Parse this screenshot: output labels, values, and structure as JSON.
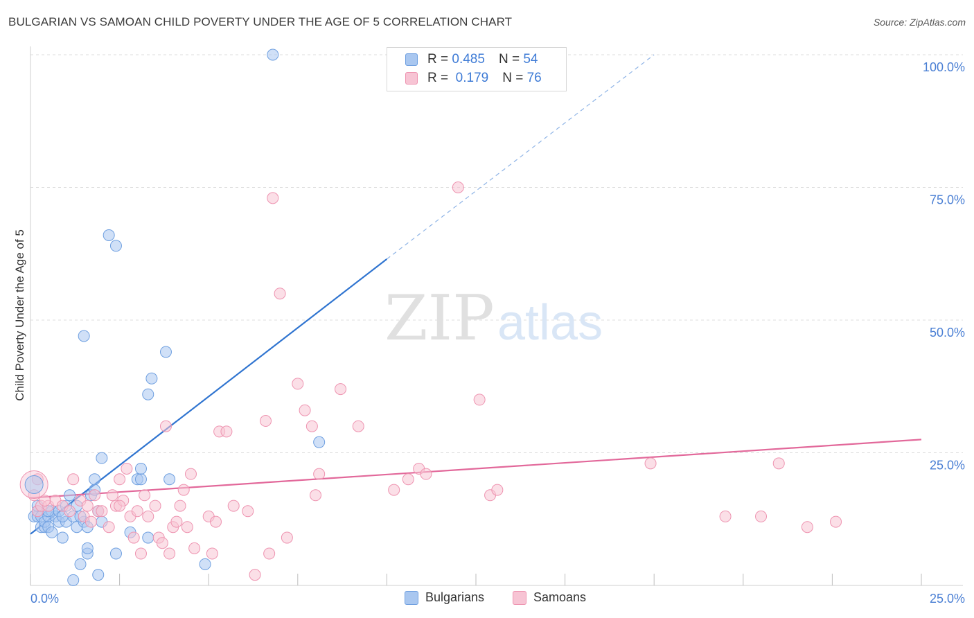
{
  "title": "BULGARIAN VS SAMOAN CHILD POVERTY UNDER THE AGE OF 5 CORRELATION CHART",
  "source": "Source: ZipAtlas.com",
  "watermark": {
    "zip": "ZIP",
    "atlas": "atlas"
  },
  "legend": {
    "rows": [
      {
        "r_label": "R =",
        "r_value": "0.485",
        "n_label": "N =",
        "n_value": "54",
        "color": "#a9c7f0",
        "edge": "#6e9fe0"
      },
      {
        "r_label": "R =",
        "r_value": "0.179",
        "n_label": "N =",
        "n_value": "76",
        "color": "#f7c4d4",
        "edge": "#ee93b0"
      }
    ]
  },
  "bottom_legend": [
    {
      "label": "Bulgarians",
      "color": "#a9c7f0",
      "edge": "#6e9fe0"
    },
    {
      "label": "Samoans",
      "color": "#f7c4d4",
      "edge": "#ee93b0"
    }
  ],
  "chart_data": {
    "type": "scatter",
    "title": "BULGARIAN VS SAMOAN CHILD POVERTY UNDER THE AGE OF 5 CORRELATION CHART",
    "xlabel": "",
    "ylabel": "Child Poverty Under the Age of 5",
    "xlim": [
      0,
      25
    ],
    "ylim": [
      0,
      100
    ],
    "x_tick_labels": [
      "0.0%",
      "25.0%"
    ],
    "y_tick_labels": [
      "100.0%",
      "75.0%",
      "50.0%",
      "25.0%"
    ],
    "y_ticks": [
      100,
      75,
      50,
      25
    ],
    "grid": true,
    "series": [
      {
        "name": "Bulgarians",
        "color": "#6e9fe0",
        "fill": "#a9c7f0",
        "trend": {
          "x": [
            0,
            10
          ],
          "y": [
            9.7,
            61.5
          ],
          "dash_to": [
            17.5,
            100
          ]
        },
        "points": [
          [
            0.1,
            13
          ],
          [
            0.2,
            13
          ],
          [
            0.2,
            14
          ],
          [
            0.3,
            11
          ],
          [
            0.3,
            13
          ],
          [
            0.4,
            11
          ],
          [
            0.4,
            12
          ],
          [
            0.5,
            13
          ],
          [
            0.5,
            11
          ],
          [
            0.6,
            14
          ],
          [
            0.6,
            10
          ],
          [
            0.7,
            13
          ],
          [
            0.8,
            12
          ],
          [
            0.8,
            14
          ],
          [
            0.9,
            9
          ],
          [
            1.0,
            15
          ],
          [
            1.0,
            12
          ],
          [
            1.1,
            17
          ],
          [
            1.2,
            13
          ],
          [
            1.3,
            11
          ],
          [
            1.3,
            15
          ],
          [
            1.4,
            4
          ],
          [
            1.5,
            12
          ],
          [
            1.5,
            47
          ],
          [
            1.6,
            6
          ],
          [
            1.6,
            7
          ],
          [
            1.6,
            11
          ],
          [
            1.7,
            17
          ],
          [
            1.8,
            18
          ],
          [
            1.8,
            20
          ],
          [
            1.9,
            2
          ],
          [
            1.9,
            14
          ],
          [
            2.0,
            24
          ],
          [
            2.0,
            12
          ],
          [
            2.2,
            66
          ],
          [
            2.4,
            64
          ],
          [
            2.4,
            6
          ],
          [
            2.8,
            10
          ],
          [
            3.0,
            20
          ],
          [
            3.1,
            20
          ],
          [
            3.1,
            22
          ],
          [
            3.3,
            36
          ],
          [
            3.3,
            9
          ],
          [
            3.4,
            39
          ],
          [
            3.8,
            44
          ],
          [
            3.9,
            20
          ],
          [
            4.9,
            4
          ],
          [
            6.8,
            100
          ],
          [
            8.1,
            27
          ],
          [
            1.2,
            1
          ],
          [
            0.2,
            15
          ],
          [
            0.5,
            14
          ],
          [
            0.9,
            13
          ],
          [
            1.4,
            13
          ]
        ]
      },
      {
        "name": "Samoans",
        "color": "#ee93b0",
        "fill": "#f7c4d4",
        "trend": {
          "x": [
            0,
            25
          ],
          "y": [
            16.5,
            27.5
          ]
        },
        "points": [
          [
            0.1,
            17
          ],
          [
            0.2,
            14
          ],
          [
            0.3,
            15
          ],
          [
            0.5,
            15
          ],
          [
            0.7,
            16
          ],
          [
            0.9,
            15
          ],
          [
            1.1,
            14
          ],
          [
            1.2,
            20
          ],
          [
            1.4,
            16
          ],
          [
            1.5,
            13
          ],
          [
            1.6,
            15
          ],
          [
            1.7,
            12
          ],
          [
            1.8,
            17
          ],
          [
            1.9,
            14
          ],
          [
            2.0,
            14
          ],
          [
            2.2,
            11
          ],
          [
            2.3,
            17
          ],
          [
            2.4,
            15
          ],
          [
            2.5,
            20
          ],
          [
            2.6,
            16
          ],
          [
            2.7,
            22
          ],
          [
            2.8,
            13
          ],
          [
            2.9,
            9
          ],
          [
            3.0,
            14
          ],
          [
            3.1,
            6
          ],
          [
            3.2,
            17
          ],
          [
            3.3,
            13
          ],
          [
            3.5,
            15
          ],
          [
            3.6,
            9
          ],
          [
            3.7,
            8
          ],
          [
            3.8,
            30
          ],
          [
            3.9,
            6
          ],
          [
            4.0,
            11
          ],
          [
            4.1,
            12
          ],
          [
            4.2,
            15
          ],
          [
            4.3,
            18
          ],
          [
            4.4,
            11
          ],
          [
            4.5,
            21
          ],
          [
            4.6,
            7
          ],
          [
            5.0,
            13
          ],
          [
            5.1,
            6
          ],
          [
            5.2,
            12
          ],
          [
            5.3,
            29
          ],
          [
            5.5,
            29
          ],
          [
            5.7,
            15
          ],
          [
            6.1,
            14
          ],
          [
            6.3,
            2
          ],
          [
            6.6,
            31
          ],
          [
            6.7,
            6
          ],
          [
            6.8,
            73
          ],
          [
            7.0,
            55
          ],
          [
            7.2,
            9
          ],
          [
            7.5,
            38
          ],
          [
            7.7,
            33
          ],
          [
            7.9,
            30
          ],
          [
            8.0,
            17
          ],
          [
            8.1,
            21
          ],
          [
            8.7,
            37
          ],
          [
            9.2,
            30
          ],
          [
            10.2,
            18
          ],
          [
            10.6,
            20
          ],
          [
            10.9,
            22
          ],
          [
            11.1,
            21
          ],
          [
            12.0,
            75
          ],
          [
            12.6,
            35
          ],
          [
            12.9,
            17
          ],
          [
            13.1,
            18
          ],
          [
            17.4,
            23
          ],
          [
            19.5,
            13
          ],
          [
            20.5,
            13
          ],
          [
            21.0,
            23
          ],
          [
            21.8,
            11
          ],
          [
            22.6,
            12
          ],
          [
            0.2,
            20
          ],
          [
            0.4,
            16
          ],
          [
            2.5,
            15
          ]
        ]
      }
    ]
  }
}
